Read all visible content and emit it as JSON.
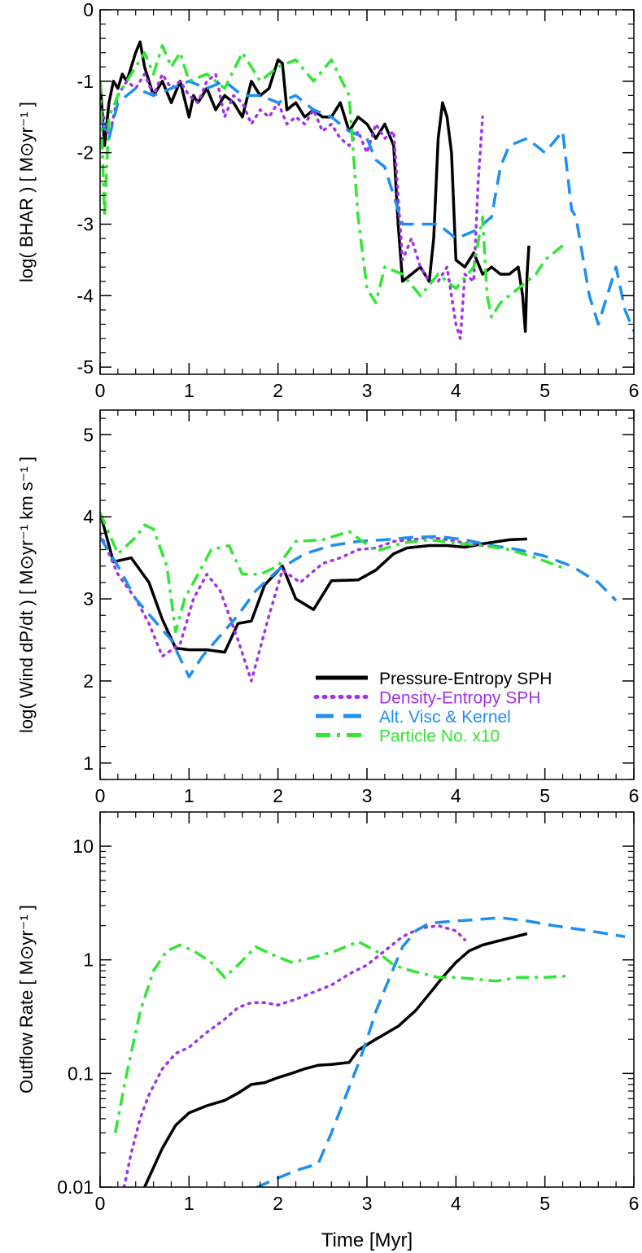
{
  "colors": {
    "pressure": "#000000",
    "density": "#a033e6",
    "altvisc": "#1e8ff0",
    "particle": "#33e633"
  },
  "legend": {
    "placement": "center-right of middle panel",
    "entries": [
      {
        "key": "pressure",
        "label": "Pressure-Entropy SPH",
        "style": "solid"
      },
      {
        "key": "density",
        "label": "Density-Entropy SPH",
        "style": "dotted"
      },
      {
        "key": "altvisc",
        "label": "Alt. Visc & Kernel",
        "style": "dashed"
      },
      {
        "key": "particle",
        "label": "Particle No. x10",
        "style": "dashdot"
      }
    ]
  },
  "chart_data": [
    {
      "type": "line",
      "ylabel": "log( BHAR )  [ M⊙yr⁻¹ ]",
      "xlim": [
        0,
        6
      ],
      "ylim": [
        -5.1,
        0
      ],
      "xticks": [
        0,
        1,
        2,
        3,
        4,
        5,
        6
      ],
      "yticks": [
        0,
        -1,
        -2,
        -3,
        -4,
        -5
      ],
      "series": [
        {
          "key": "pressure",
          "x": [
            0,
            0.05,
            0.1,
            0.15,
            0.2,
            0.25,
            0.3,
            0.35,
            0.4,
            0.45,
            0.5,
            0.55,
            0.6,
            0.7,
            0.8,
            0.9,
            1.0,
            1.05,
            1.1,
            1.2,
            1.3,
            1.4,
            1.5,
            1.6,
            1.7,
            1.8,
            1.9,
            2.0,
            2.05,
            2.1,
            2.2,
            2.3,
            2.4,
            2.5,
            2.6,
            2.7,
            2.8,
            2.9,
            3.0,
            3.1,
            3.2,
            3.3,
            3.35,
            3.4,
            3.5,
            3.6,
            3.7,
            3.75,
            3.8,
            3.85,
            3.9,
            3.95,
            4.0,
            4.1,
            4.2,
            4.3,
            4.4,
            4.5,
            4.6,
            4.7,
            4.75,
            4.78,
            4.8,
            4.82
          ],
          "values": [
            -1.0,
            -1.9,
            -1.3,
            -1.0,
            -1.1,
            -0.9,
            -1.0,
            -0.8,
            -0.6,
            -0.45,
            -0.8,
            -1.0,
            -1.2,
            -1.0,
            -1.3,
            -1.0,
            -1.5,
            -1.2,
            -1.3,
            -1.1,
            -1.4,
            -1.2,
            -1.3,
            -1.5,
            -1.0,
            -1.2,
            -1.1,
            -0.7,
            -0.75,
            -1.4,
            -1.3,
            -1.5,
            -1.4,
            -1.5,
            -1.5,
            -1.3,
            -1.7,
            -1.5,
            -1.6,
            -1.8,
            -1.6,
            -1.9,
            -3.0,
            -3.8,
            -3.7,
            -3.6,
            -3.8,
            -3.2,
            -1.8,
            -1.3,
            -1.5,
            -2.0,
            -3.5,
            -3.6,
            -3.4,
            -3.7,
            -3.6,
            -3.7,
            -3.7,
            -3.6,
            -4.0,
            -4.5,
            -3.7,
            -3.3
          ]
        },
        {
          "key": "density",
          "x": [
            0,
            0.1,
            0.2,
            0.3,
            0.4,
            0.5,
            0.6,
            0.7,
            0.8,
            0.9,
            1.0,
            1.1,
            1.2,
            1.3,
            1.4,
            1.5,
            1.6,
            1.7,
            1.8,
            1.9,
            2.0,
            2.1,
            2.2,
            2.3,
            2.4,
            2.5,
            2.6,
            2.7,
            2.8,
            2.9,
            3.0,
            3.1,
            3.2,
            3.3,
            3.4,
            3.5,
            3.6,
            3.7,
            3.8,
            3.9,
            4.0,
            4.05,
            4.1,
            4.2,
            4.25,
            4.3
          ],
          "values": [
            -1.3,
            -1.8,
            -1.2,
            -1.0,
            -1.1,
            -0.9,
            -1.2,
            -0.9,
            -1.1,
            -1.0,
            -1.2,
            -1.3,
            -1.0,
            -0.9,
            -1.5,
            -1.2,
            -1.3,
            -1.6,
            -1.4,
            -1.5,
            -1.3,
            -1.6,
            -1.5,
            -1.6,
            -1.4,
            -1.7,
            -1.6,
            -1.8,
            -1.9,
            -1.7,
            -2.0,
            -1.6,
            -1.8,
            -1.7,
            -3.5,
            -3.2,
            -3.6,
            -3.8,
            -3.8,
            -3.6,
            -4.4,
            -4.6,
            -3.7,
            -3.8,
            -2.4,
            -1.5
          ]
        },
        {
          "key": "altvisc",
          "x": [
            0,
            0.1,
            0.2,
            0.4,
            0.6,
            0.8,
            1.0,
            1.2,
            1.4,
            1.6,
            1.8,
            2.0,
            2.2,
            2.4,
            2.6,
            2.8,
            3.0,
            3.1,
            3.2,
            3.3,
            3.4,
            3.6,
            3.8,
            4.0,
            4.2,
            4.4,
            4.5,
            4.6,
            4.8,
            5.0,
            5.2,
            5.3,
            5.35,
            5.5,
            5.6,
            5.7,
            5.8,
            5.9,
            6.0
          ],
          "values": [
            -1.5,
            -1.8,
            -1.3,
            -1.1,
            -1.2,
            -1.1,
            -1.0,
            -1.1,
            -1.0,
            -1.2,
            -1.2,
            -1.3,
            -1.2,
            -1.4,
            -1.5,
            -1.7,
            -1.8,
            -2.1,
            -2.2,
            -2.6,
            -3.0,
            -3.0,
            -3.0,
            -3.2,
            -3.1,
            -2.9,
            -2.2,
            -1.9,
            -1.8,
            -2.0,
            -1.7,
            -2.8,
            -2.9,
            -4.0,
            -4.4,
            -4.0,
            -3.6,
            -4.2,
            -4.5
          ]
        },
        {
          "key": "particle",
          "x": [
            0,
            0.05,
            0.1,
            0.2,
            0.3,
            0.4,
            0.5,
            0.6,
            0.7,
            0.8,
            0.9,
            1.0,
            1.2,
            1.4,
            1.6,
            1.8,
            2.0,
            2.2,
            2.4,
            2.6,
            2.8,
            2.9,
            3.0,
            3.1,
            3.2,
            3.4,
            3.6,
            3.8,
            4.0,
            4.2,
            4.3,
            4.35,
            4.4,
            4.5,
            4.7,
            4.9,
            5.0,
            5.2
          ],
          "values": [
            -1.0,
            -2.9,
            -1.5,
            -1.2,
            -1.0,
            -0.8,
            -0.6,
            -0.9,
            -0.5,
            -0.8,
            -0.6,
            -1.0,
            -0.9,
            -1.1,
            -0.6,
            -1.0,
            -0.8,
            -0.7,
            -1.0,
            -0.7,
            -1.2,
            -2.9,
            -3.9,
            -4.1,
            -3.6,
            -3.7,
            -4.0,
            -3.7,
            -3.9,
            -3.6,
            -2.9,
            -4.0,
            -4.3,
            -4.1,
            -3.9,
            -3.7,
            -3.5,
            -3.3
          ]
        }
      ]
    },
    {
      "type": "line",
      "ylabel": "log( Wind dP/dt )  [ M⊙yr⁻¹ km s⁻¹ ]",
      "xlim": [
        0,
        6
      ],
      "ylim": [
        0.8,
        5.3
      ],
      "xticks": [
        0,
        1,
        2,
        3,
        4,
        5,
        6
      ],
      "yticks": [
        1,
        2,
        3,
        4,
        5
      ],
      "series": [
        {
          "key": "pressure",
          "x": [
            0,
            0.15,
            0.35,
            0.55,
            0.7,
            0.85,
            1.0,
            1.2,
            1.4,
            1.55,
            1.7,
            1.85,
            2.05,
            2.2,
            2.4,
            2.6,
            2.9,
            3.1,
            3.3,
            3.45,
            3.7,
            3.9,
            4.1,
            4.3,
            4.6,
            4.8
          ],
          "values": [
            4.05,
            3.45,
            3.5,
            3.2,
            2.75,
            2.4,
            2.38,
            2.38,
            2.35,
            2.7,
            2.73,
            3.17,
            3.4,
            3.0,
            2.87,
            3.22,
            3.23,
            3.35,
            3.55,
            3.62,
            3.65,
            3.65,
            3.63,
            3.67,
            3.72,
            3.73
          ]
        },
        {
          "key": "density",
          "x": [
            0,
            0.2,
            0.4,
            0.55,
            0.7,
            0.9,
            1.05,
            1.2,
            1.35,
            1.55,
            1.7,
            1.9,
            2.05,
            2.25,
            2.5,
            2.7,
            2.9,
            3.1,
            3.3,
            3.5,
            3.7,
            3.9,
            4.1,
            4.3
          ],
          "values": [
            3.8,
            3.3,
            3.0,
            2.7,
            2.3,
            2.45,
            3.0,
            3.3,
            3.1,
            2.5,
            2.0,
            2.8,
            3.35,
            3.2,
            3.43,
            3.5,
            3.6,
            3.62,
            3.7,
            3.72,
            3.75,
            3.72,
            3.68,
            3.65
          ]
        },
        {
          "key": "altvisc",
          "x": [
            0,
            0.2,
            0.4,
            0.6,
            0.8,
            1.0,
            1.15,
            1.35,
            1.55,
            1.75,
            2.0,
            2.3,
            2.6,
            2.9,
            3.2,
            3.5,
            3.8,
            4.1,
            4.4,
            4.7,
            5.0,
            5.3,
            5.6,
            5.8
          ],
          "values": [
            3.75,
            3.4,
            3.0,
            2.75,
            2.5,
            2.05,
            2.3,
            2.55,
            2.8,
            3.1,
            3.35,
            3.55,
            3.65,
            3.7,
            3.72,
            3.75,
            3.76,
            3.72,
            3.65,
            3.6,
            3.52,
            3.4,
            3.2,
            2.98
          ]
        },
        {
          "key": "particle",
          "x": [
            0,
            0.2,
            0.4,
            0.5,
            0.6,
            0.75,
            0.85,
            0.95,
            1.1,
            1.25,
            1.45,
            1.6,
            1.8,
            2.0,
            2.2,
            2.5,
            2.8,
            3.1,
            3.4,
            3.7,
            4.0,
            4.3,
            4.6,
            4.9,
            5.2
          ],
          "values": [
            4.05,
            3.55,
            3.75,
            3.9,
            3.85,
            3.4,
            2.6,
            3.0,
            3.3,
            3.6,
            3.65,
            3.3,
            3.3,
            3.4,
            3.7,
            3.72,
            3.82,
            3.58,
            3.68,
            3.72,
            3.68,
            3.65,
            3.6,
            3.5,
            3.38
          ]
        }
      ]
    },
    {
      "type": "line",
      "ylabel": "Outflow Rate  [ M⊙yr⁻¹ ]",
      "xlabel": "Time  [Myr]",
      "xlim": [
        0,
        6
      ],
      "ylim": [
        0.01,
        20
      ],
      "yscale": "log",
      "xticks": [
        0,
        1,
        2,
        3,
        4,
        5,
        6
      ],
      "yticks": [
        0.01,
        0.1,
        1,
        10
      ],
      "ytick_labels": [
        "0.01",
        "0.1",
        "1",
        "10"
      ],
      "series": [
        {
          "key": "pressure",
          "x": [
            0.5,
            0.7,
            0.85,
            1.0,
            1.2,
            1.4,
            1.55,
            1.7,
            1.85,
            2.0,
            2.15,
            2.3,
            2.45,
            2.6,
            2.8,
            2.9,
            3.1,
            3.35,
            3.55,
            3.7,
            3.85,
            4.0,
            4.15,
            4.3,
            4.45,
            4.6,
            4.8
          ],
          "values": [
            0.01,
            0.022,
            0.035,
            0.045,
            0.052,
            0.058,
            0.067,
            0.08,
            0.083,
            0.092,
            0.1,
            0.11,
            0.118,
            0.12,
            0.125,
            0.16,
            0.2,
            0.26,
            0.36,
            0.5,
            0.7,
            0.95,
            1.2,
            1.35,
            1.45,
            1.55,
            1.7
          ]
        },
        {
          "key": "density",
          "x": [
            0.27,
            0.35,
            0.45,
            0.55,
            0.7,
            0.85,
            1.0,
            1.2,
            1.4,
            1.55,
            1.7,
            1.85,
            2.0,
            2.2,
            2.4,
            2.6,
            2.8,
            3.0,
            3.2,
            3.4,
            3.6,
            3.8,
            4.0,
            4.1
          ],
          "values": [
            0.01,
            0.02,
            0.04,
            0.065,
            0.11,
            0.15,
            0.17,
            0.23,
            0.3,
            0.38,
            0.42,
            0.42,
            0.4,
            0.45,
            0.52,
            0.6,
            0.75,
            0.9,
            1.2,
            1.6,
            1.9,
            2.0,
            1.8,
            1.5
          ]
        },
        {
          "key": "altvisc",
          "x": [
            1.5,
            1.7,
            2.0,
            2.2,
            2.45,
            2.6,
            2.75,
            2.9,
            3.0,
            3.1,
            3.2,
            3.3,
            3.4,
            3.55,
            3.7,
            3.85,
            4.0,
            4.2,
            4.5,
            4.8,
            5.1,
            5.5,
            5.9
          ],
          "values": [
            0.0095,
            0.0095,
            0.012,
            0.014,
            0.016,
            0.03,
            0.06,
            0.12,
            0.2,
            0.35,
            0.55,
            0.85,
            1.3,
            1.8,
            2.1,
            2.15,
            2.2,
            2.25,
            2.35,
            2.2,
            2.0,
            1.8,
            1.6
          ]
        },
        {
          "key": "particle",
          "x": [
            0.17,
            0.3,
            0.45,
            0.6,
            0.75,
            0.9,
            1.05,
            1.25,
            1.4,
            1.55,
            1.75,
            1.95,
            2.15,
            2.4,
            2.65,
            2.9,
            3.1,
            3.3,
            3.5,
            3.8,
            4.0,
            4.2,
            4.45,
            4.7,
            5.0,
            5.25
          ],
          "values": [
            0.03,
            0.1,
            0.35,
            0.8,
            1.2,
            1.35,
            1.2,
            0.95,
            0.7,
            0.9,
            1.3,
            1.1,
            0.95,
            1.05,
            1.2,
            1.45,
            1.2,
            0.9,
            0.8,
            0.7,
            0.7,
            0.68,
            0.65,
            0.7,
            0.7,
            0.72
          ]
        }
      ]
    }
  ]
}
